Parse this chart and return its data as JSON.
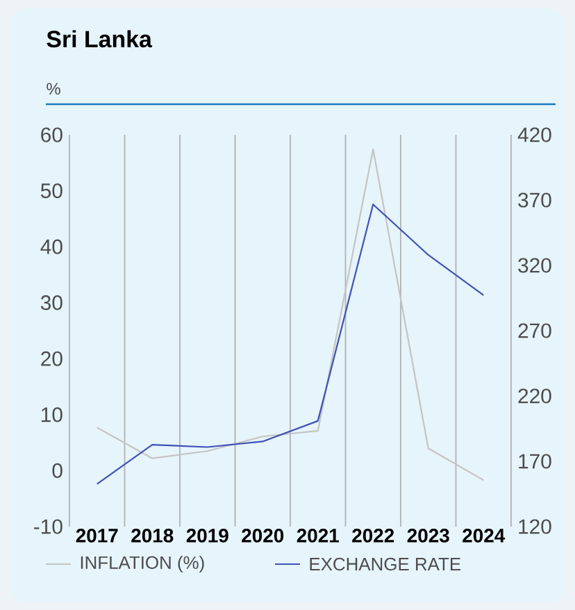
{
  "chart_data": {
    "type": "line",
    "title": "Sri Lanka",
    "subtitle": "%",
    "categories": [
      "2017",
      "2018",
      "2019",
      "2020",
      "2021",
      "2022",
      "2023",
      "2024"
    ],
    "series": [
      {
        "name": "INFLATION (%)",
        "color": "#c4c4c4",
        "values": [
          7.7,
          2.2,
          3.5,
          6.1,
          7.1,
          57.4,
          4.0,
          -1.7
        ]
      },
      {
        "name": "EXCHANGE RATE",
        "color": "#3f51b5",
        "axis": "y2",
        "values": [
          152.6,
          182.7,
          180.9,
          185.2,
          200.9,
          366.7,
          328.0,
          297.2
        ]
      }
    ],
    "ylim": [
      -10,
      60
    ],
    "yticks": [
      -10,
      0,
      10,
      20,
      30,
      40,
      50,
      60
    ],
    "y2lim": [
      120,
      420
    ],
    "y2ticks": [
      120,
      170,
      220,
      270,
      320,
      370,
      420
    ],
    "grid": "x",
    "legend": "bottom",
    "marker": "none",
    "line_style": "solid"
  }
}
